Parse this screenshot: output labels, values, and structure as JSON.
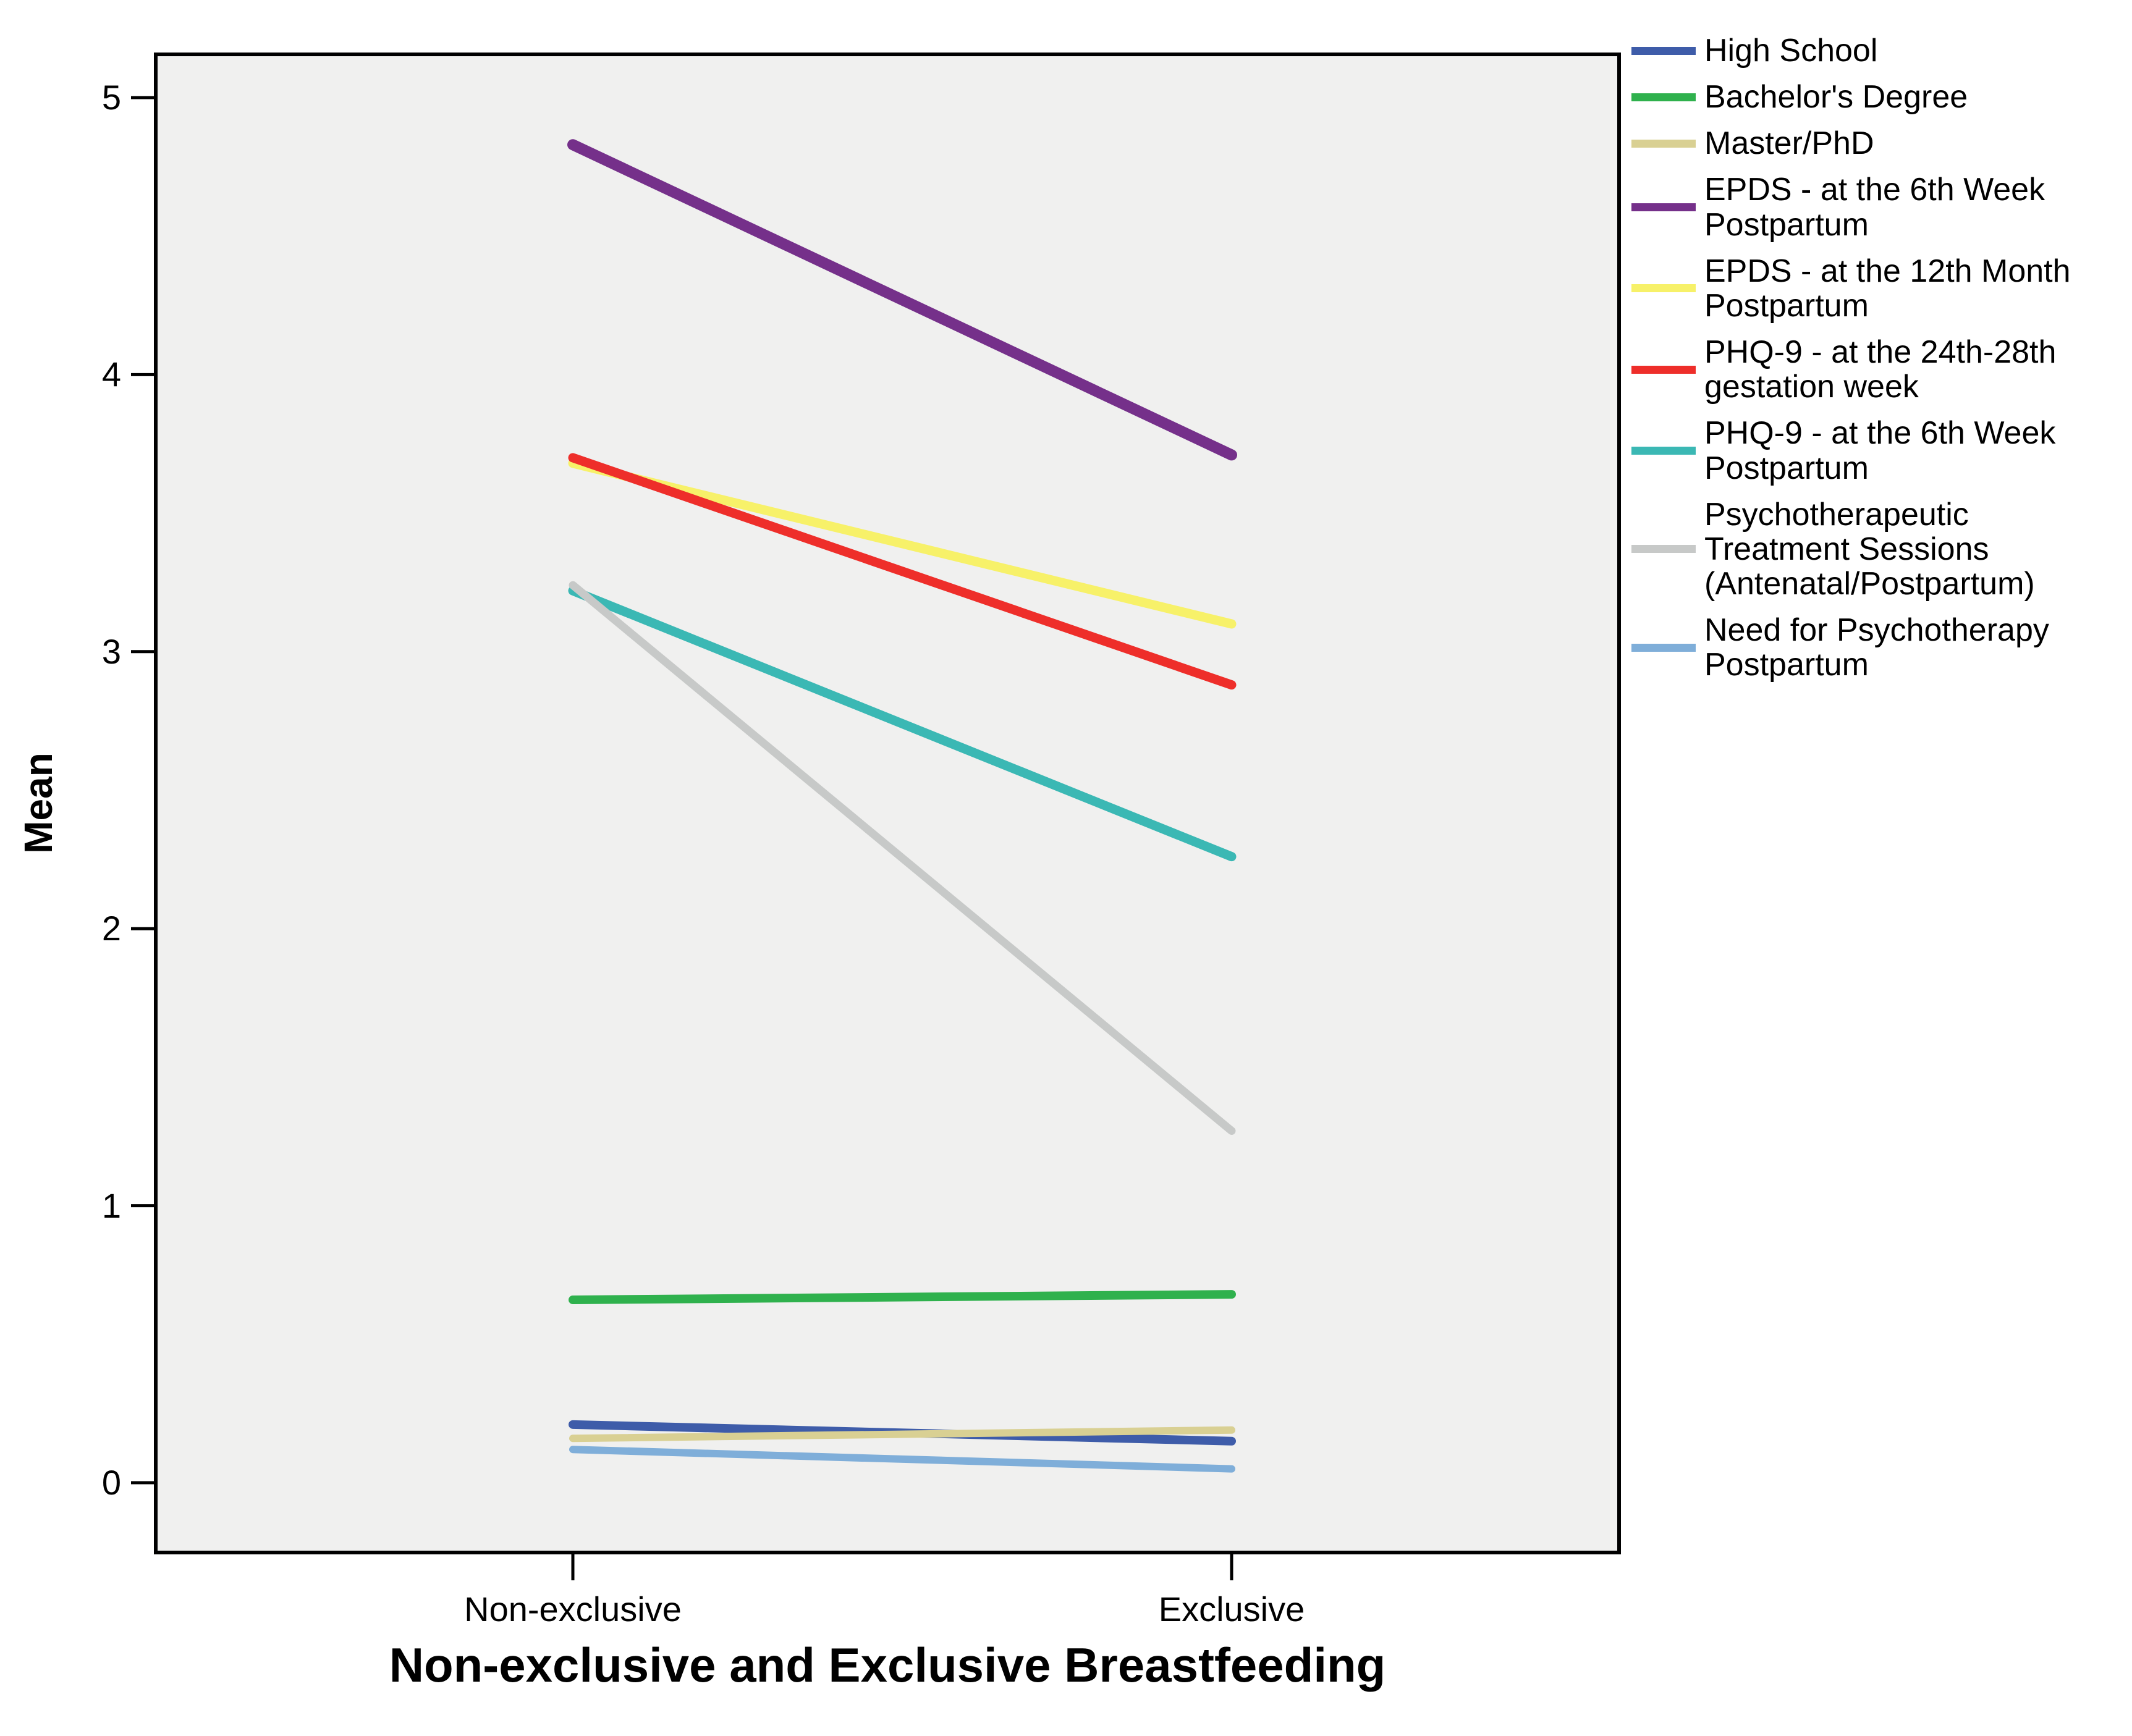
{
  "page": {
    "background": "#ffffff",
    "plot_border_color": "#000000",
    "tick_color": "#000000"
  },
  "chart_data": {
    "type": "line",
    "categories": [
      "Non-exclusive",
      "Exclusive"
    ],
    "series": [
      {
        "name": "High School",
        "color": "#3E5CA9",
        "line_width": 14,
        "values": [
          0.21,
          0.15
        ]
      },
      {
        "name": "Bachelor's Degree",
        "color": "#2FB14D",
        "line_width": 14,
        "values": [
          0.66,
          0.68
        ]
      },
      {
        "name": "Master/PhD",
        "color": "#D9D093",
        "line_width": 12,
        "values": [
          0.16,
          0.19
        ]
      },
      {
        "name": "EPDS - at the 6th Week Postpartum",
        "color": "#75308A",
        "line_width": 18,
        "values": [
          4.83,
          3.71
        ]
      },
      {
        "name": "EPDS - at the 12th Month Postpartum",
        "color": "#F7F169",
        "line_width": 15,
        "values": [
          3.68,
          3.1
        ]
      },
      {
        "name": "PHQ-9 - at the 24th-28th gestation week",
        "color": "#EE2E2A",
        "line_width": 15,
        "values": [
          3.7,
          2.88
        ]
      },
      {
        "name": "PHQ-9 - at the 6th Week Postpartum",
        "color": "#3BB8B4",
        "line_width": 15,
        "values": [
          3.22,
          2.26
        ]
      },
      {
        "name": "Psychotherapeutic Treatment Sessions (Antenatal/Postpartum)",
        "color": "#C7C9C8",
        "line_width": 13,
        "values": [
          3.24,
          1.27
        ]
      },
      {
        "name": "Need for Psychotherapy Postpartum",
        "color": "#7FAED9",
        "line_width": 12,
        "values": [
          0.12,
          0.05
        ]
      }
    ],
    "title": "",
    "xlabel": "Non-exclusive and Exclusive Breastfeeding",
    "ylabel": "Mean",
    "y_ticks": [
      0,
      1,
      2,
      3,
      4,
      5
    ],
    "ylim": [
      -0.25,
      5.17
    ],
    "grid": false,
    "legend_position": "right",
    "plot_background": "#F0F0EF"
  },
  "legend": {
    "items": [
      {
        "label": "High School"
      },
      {
        "label": "Bachelor's Degree"
      },
      {
        "label": "Master/PhD"
      },
      {
        "label": "EPDS - at the 6th Week\nPostpartum"
      },
      {
        "label": "EPDS - at the 12th Month\nPostpartum"
      },
      {
        "label": "PHQ-9 - at the 24th-28th\ngestation week"
      },
      {
        "label": "PHQ-9 - at the 6th Week\nPostpartum"
      },
      {
        "label": "Psychotherapeutic\nTreatment Sessions\n(Antenatal/Postpartum)"
      },
      {
        "label": "Need for Psychotherapy\nPostpartum"
      }
    ]
  }
}
